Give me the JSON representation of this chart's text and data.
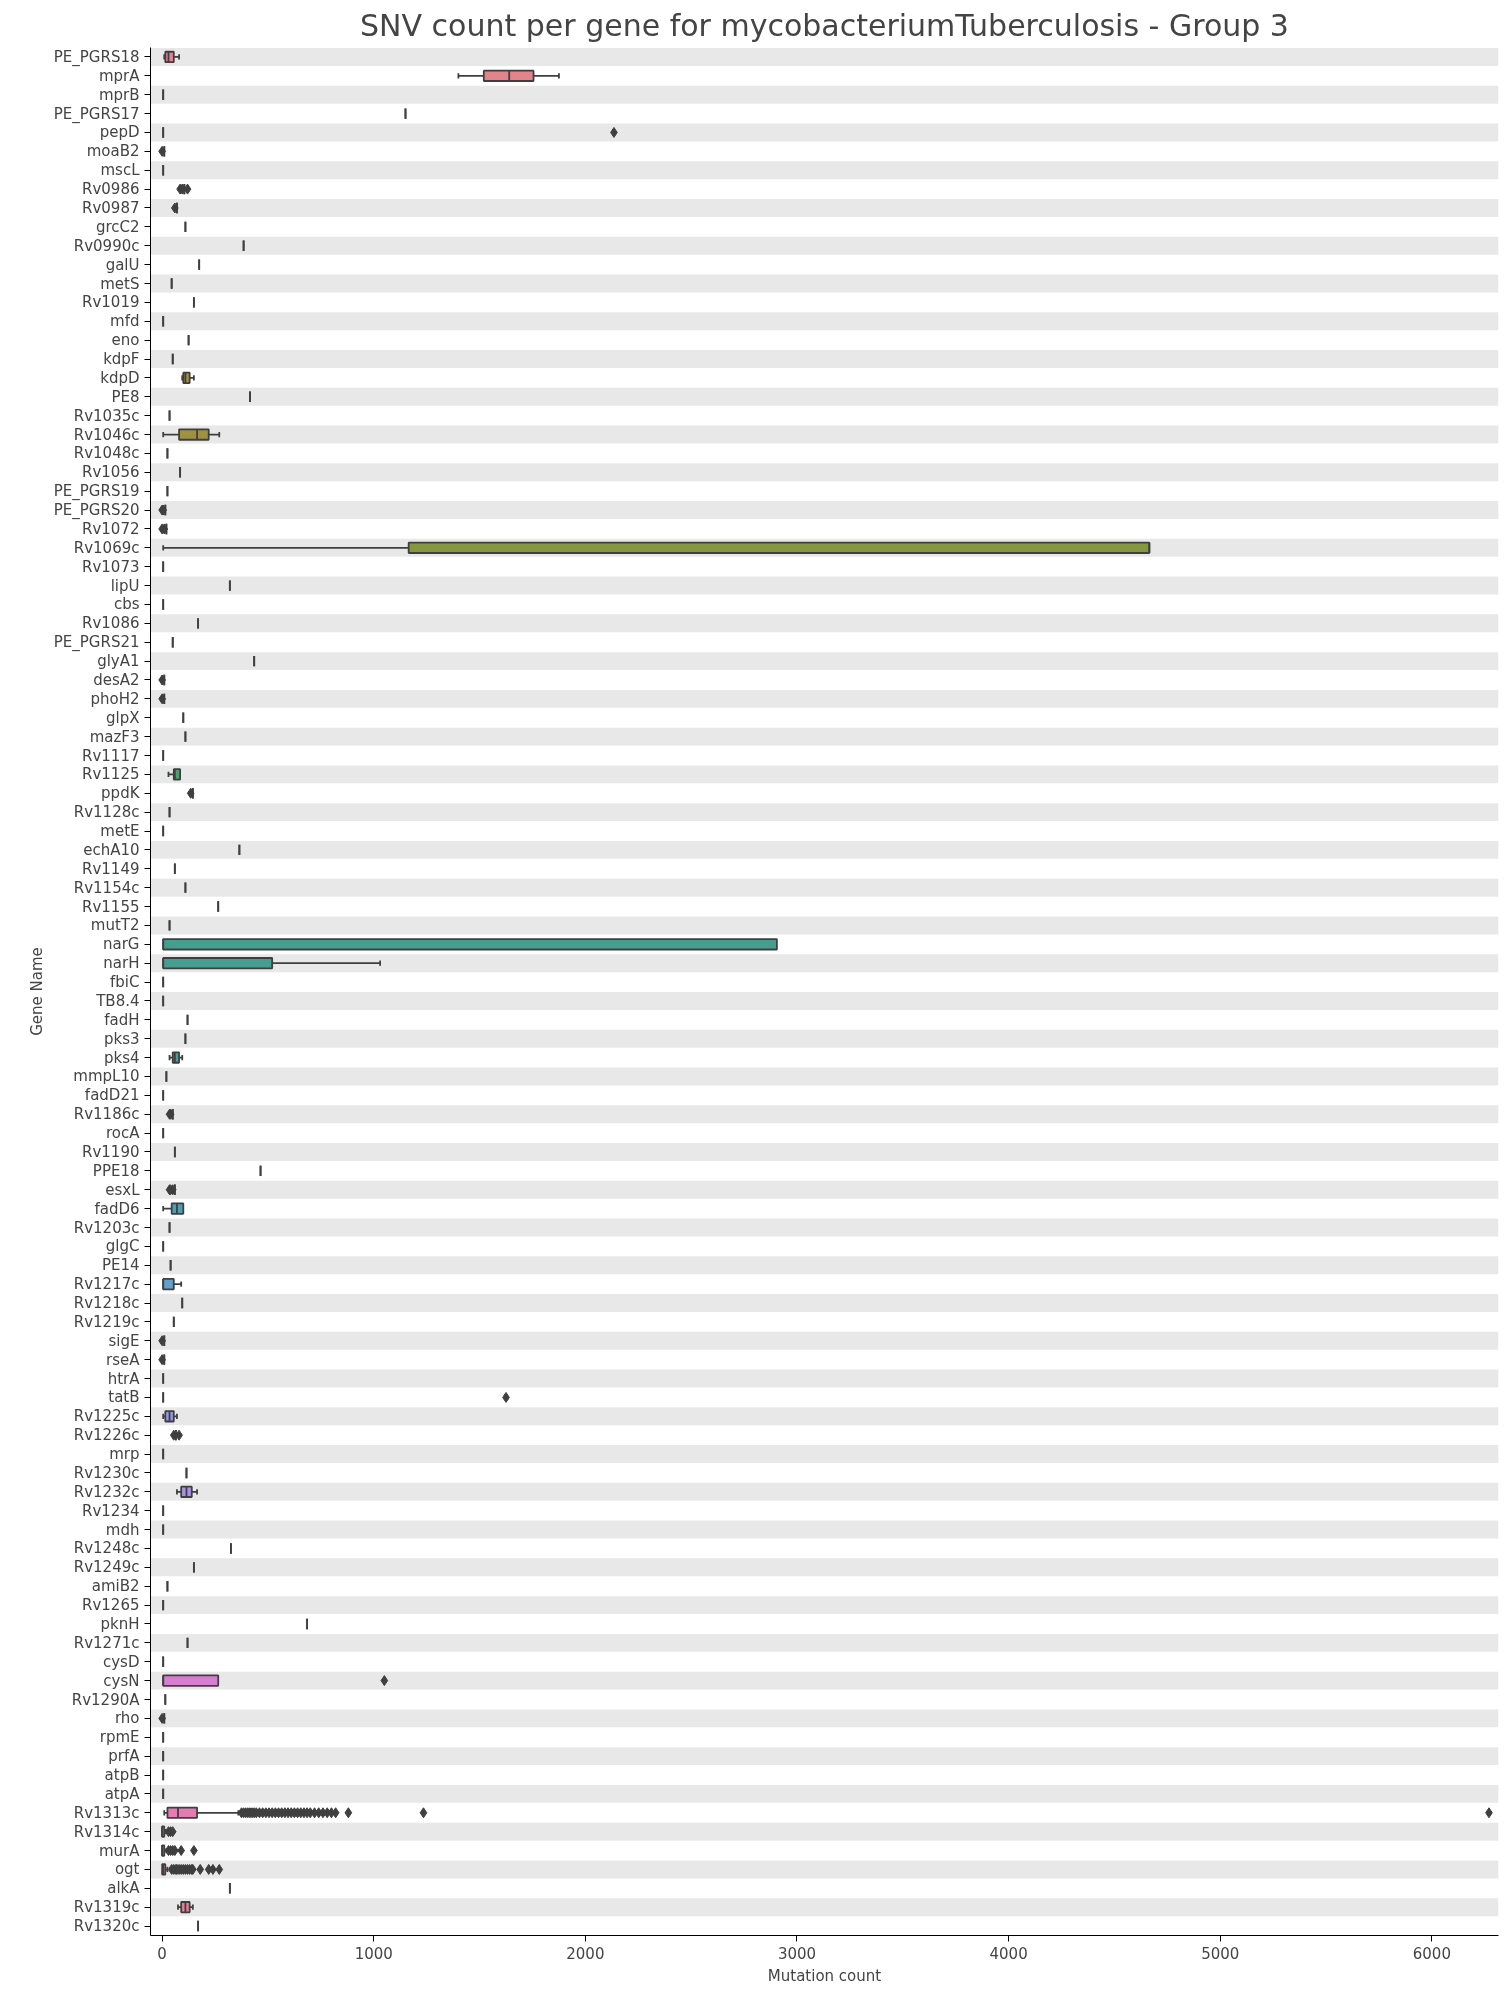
{
  "chart_data": {
    "type": "box",
    "orientation": "horizontal",
    "title": "SNV count per gene for mycobacteriumTuberculosis - Group 3",
    "xlabel": "Mutation count",
    "ylabel": "Gene Name",
    "categories": [
      "PE_PGRS18",
      "mprA",
      "mprB",
      "PE_PGRS17",
      "pepD",
      "moaB2",
      "mscL",
      "Rv0986",
      "Rv0987",
      "grcC2",
      "Rv0990c",
      "galU",
      "metS",
      "Rv1019",
      "mfd",
      "eno",
      "kdpF",
      "kdpD",
      "PE8",
      "Rv1035c",
      "Rv1046c",
      "Rv1048c",
      "Rv1056",
      "PE_PGRS19",
      "PE_PGRS20",
      "Rv1072",
      "Rv1069c",
      "Rv1073",
      "lipU",
      "cbs",
      "Rv1086",
      "PE_PGRS21",
      "glyA1",
      "desA2",
      "phoH2",
      "glpX",
      "mazF3",
      "Rv1117",
      "Rv1125",
      "ppdK",
      "Rv1128c",
      "metE",
      "echA10",
      "Rv1149",
      "Rv1154c",
      "Rv1155",
      "mutT2",
      "narG",
      "narH",
      "fbiC",
      "TB8.4",
      "fadH",
      "pks3",
      "pks4",
      "mmpL10",
      "fadD21",
      "Rv1186c",
      "rocA",
      "Rv1190",
      "PPE18",
      "esxL",
      "fadD6",
      "Rv1203c",
      "glgC",
      "PE14",
      "Rv1217c",
      "Rv1218c",
      "Rv1219c",
      "sigE",
      "rseA",
      "htrA",
      "tatB",
      "Rv1225c",
      "Rv1226c",
      "mrp",
      "Rv1230c",
      "Rv1232c",
      "Rv1234",
      "mdh",
      "Rv1248c",
      "Rv1249c",
      "amiB2",
      "Rv1265",
      "pknH",
      "Rv1271c",
      "cysD",
      "cysN",
      "Rv1290A",
      "rho",
      "rpmE",
      "prfA",
      "atpB",
      "atpA",
      "Rv1313c",
      "Rv1314c",
      "murA",
      "ogt",
      "alkA",
      "Rv1319c",
      "Rv1320c"
    ],
    "colors": [
      "#e68294",
      "#e3838c",
      "#3f3f3f",
      "#3f3f3f",
      "#3f3f3f",
      "#3f3f3f",
      "#3f3f3f",
      "#3f3f3f",
      "#3f3f3f",
      "#3f3f3f",
      "#3f3f3f",
      "#3f3f3f",
      "#3f3f3f",
      "#3f3f3f",
      "#3f3f3f",
      "#3f3f3f",
      "#3f3f3f",
      "#aa8f43",
      "#3f3f3f",
      "#3f3f3f",
      "#9e9241",
      "#3f3f3f",
      "#3f3f3f",
      "#3f3f3f",
      "#3f3f3f",
      "#3f3f3f",
      "#859840",
      "#3f3f3f",
      "#3f3f3f",
      "#3f3f3f",
      "#3f3f3f",
      "#3f3f3f",
      "#3f3f3f",
      "#3f3f3f",
      "#3f3f3f",
      "#3f3f3f",
      "#3f3f3f",
      "#3f3f3f",
      "#4d9f6d",
      "#3f3f3f",
      "#3f3f3f",
      "#3f3f3f",
      "#3f3f3f",
      "#3f3f3f",
      "#3f3f3f",
      "#3f3f3f",
      "#3f3f3f",
      "#449f8e",
      "#459e91",
      "#3f3f3f",
      "#3f3f3f",
      "#3f3f3f",
      "#3f3f3f",
      "#479e9f",
      "#3f3f3f",
      "#3f3f3f",
      "#3f3f3f",
      "#3f3f3f",
      "#3f3f3f",
      "#3f3f3f",
      "#3f3f3f",
      "#4f9eb8",
      "#3f3f3f",
      "#3f3f3f",
      "#3f3f3f",
      "#65a0cb",
      "#3f3f3f",
      "#3f3f3f",
      "#3f3f3f",
      "#3f3f3f",
      "#3f3f3f",
      "#3f3f3f",
      "#959ae4",
      "#3f3f3f",
      "#3f3f3f",
      "#3f3f3f",
      "#aa93e4",
      "#3f3f3f",
      "#3f3f3f",
      "#3f3f3f",
      "#3f3f3f",
      "#3f3f3f",
      "#3f3f3f",
      "#3f3f3f",
      "#3f3f3f",
      "#3f3f3f",
      "#d87ed1",
      "#3f3f3f",
      "#3f3f3f",
      "#3f3f3f",
      "#3f3f3f",
      "#3f3f3f",
      "#3f3f3f",
      "#e47bb1",
      "#e57dac",
      "#e57ea7",
      "#e57fa2",
      "#3f3f3f",
      "#e6809e",
      "#3f3f3f"
    ],
    "boxes": [
      {
        "low": 10,
        "q1": 15,
        "median": 30,
        "q3": 55,
        "high": 80
      },
      {
        "low": 1400,
        "q1": 1520,
        "median": 1640,
        "q3": 1755,
        "high": 1875
      },
      {
        "low": 5,
        "q1": 5,
        "median": 5,
        "q3": 5,
        "high": 5
      },
      {
        "low": 1150,
        "q1": 1150,
        "median": 1150,
        "q3": 1150,
        "high": 1150
      },
      {
        "low": 5,
        "q1": 5,
        "median": 5,
        "q3": 5,
        "high": 5,
        "outliers": [
          2135
        ]
      },
      {
        "low": 10,
        "q1": 10,
        "median": 10,
        "q3": 10,
        "high": 10,
        "outliers": [
          0
        ]
      },
      {
        "low": 5,
        "q1": 5,
        "median": 5,
        "q3": 5,
        "high": 5
      },
      {
        "low": 105,
        "q1": 105,
        "median": 105,
        "q3": 105,
        "high": 105,
        "outliers": [
          85,
          95,
          120
        ]
      },
      {
        "low": 70,
        "q1": 70,
        "median": 70,
        "q3": 70,
        "high": 70,
        "outliers": [
          60
        ]
      },
      {
        "low": 110,
        "q1": 110,
        "median": 110,
        "q3": 110,
        "high": 110
      },
      {
        "low": 385,
        "q1": 385,
        "median": 385,
        "q3": 385,
        "high": 385
      },
      {
        "low": 175,
        "q1": 175,
        "median": 175,
        "q3": 175,
        "high": 175
      },
      {
        "low": 45,
        "q1": 45,
        "median": 45,
        "q3": 45,
        "high": 45
      },
      {
        "low": 150,
        "q1": 150,
        "median": 150,
        "q3": 150,
        "high": 150
      },
      {
        "low": 5,
        "q1": 5,
        "median": 5,
        "q3": 5,
        "high": 5
      },
      {
        "low": 125,
        "q1": 125,
        "median": 125,
        "q3": 125,
        "high": 125
      },
      {
        "low": 50,
        "q1": 50,
        "median": 50,
        "q3": 50,
        "high": 50
      },
      {
        "low": 95,
        "q1": 100,
        "median": 110,
        "q3": 130,
        "high": 150
      },
      {
        "low": 415,
        "q1": 415,
        "median": 415,
        "q3": 415,
        "high": 415
      },
      {
        "low": 35,
        "q1": 35,
        "median": 35,
        "q3": 35,
        "high": 35
      },
      {
        "low": 5,
        "q1": 80,
        "median": 165,
        "q3": 220,
        "high": 270
      },
      {
        "low": 25,
        "q1": 25,
        "median": 25,
        "q3": 25,
        "high": 25
      },
      {
        "low": 85,
        "q1": 85,
        "median": 85,
        "q3": 85,
        "high": 85
      },
      {
        "low": 25,
        "q1": 25,
        "median": 25,
        "q3": 25,
        "high": 25
      },
      {
        "low": 15,
        "q1": 15,
        "median": 15,
        "q3": 15,
        "high": 15,
        "outliers": [
          0,
          5
        ]
      },
      {
        "low": 20,
        "q1": 20,
        "median": 20,
        "q3": 20,
        "high": 20,
        "outliers": [
          0,
          10
        ]
      },
      {
        "low": 5,
        "q1": 1165,
        "median": 4665,
        "q3": 4665,
        "high": 4665
      },
      {
        "low": 5,
        "q1": 5,
        "median": 5,
        "q3": 5,
        "high": 5
      },
      {
        "low": 320,
        "q1": 320,
        "median": 320,
        "q3": 320,
        "high": 320
      },
      {
        "low": 5,
        "q1": 5,
        "median": 5,
        "q3": 5,
        "high": 5
      },
      {
        "low": 170,
        "q1": 170,
        "median": 170,
        "q3": 170,
        "high": 170
      },
      {
        "low": 50,
        "q1": 50,
        "median": 50,
        "q3": 50,
        "high": 50
      },
      {
        "low": 435,
        "q1": 435,
        "median": 435,
        "q3": 435,
        "high": 435
      },
      {
        "low": 10,
        "q1": 10,
        "median": 10,
        "q3": 10,
        "high": 10,
        "outliers": [
          0
        ]
      },
      {
        "low": 10,
        "q1": 10,
        "median": 10,
        "q3": 10,
        "high": 10,
        "outliers": [
          0
        ]
      },
      {
        "low": 100,
        "q1": 100,
        "median": 100,
        "q3": 100,
        "high": 100
      },
      {
        "low": 110,
        "q1": 110,
        "median": 110,
        "q3": 110,
        "high": 110
      },
      {
        "low": 5,
        "q1": 5,
        "median": 5,
        "q3": 5,
        "high": 5
      },
      {
        "low": 30,
        "q1": 55,
        "median": 60,
        "q3": 85,
        "high": 85
      },
      {
        "low": 145,
        "q1": 145,
        "median": 145,
        "q3": 145,
        "high": 145,
        "outliers": [
          135
        ]
      },
      {
        "low": 35,
        "q1": 35,
        "median": 35,
        "q3": 35,
        "high": 35
      },
      {
        "low": 5,
        "q1": 5,
        "median": 5,
        "q3": 5,
        "high": 5
      },
      {
        "low": 365,
        "q1": 365,
        "median": 365,
        "q3": 365,
        "high": 365
      },
      {
        "low": 60,
        "q1": 60,
        "median": 60,
        "q3": 60,
        "high": 60
      },
      {
        "low": 110,
        "q1": 110,
        "median": 110,
        "q3": 110,
        "high": 110
      },
      {
        "low": 265,
        "q1": 265,
        "median": 265,
        "q3": 265,
        "high": 265
      },
      {
        "low": 35,
        "q1": 35,
        "median": 35,
        "q3": 35,
        "high": 35
      },
      {
        "low": 5,
        "q1": 5,
        "median": 5,
        "q3": 2905,
        "high": 2905
      },
      {
        "low": 5,
        "q1": 5,
        "median": 5,
        "q3": 520,
        "high": 1030
      },
      {
        "low": 5,
        "q1": 5,
        "median": 5,
        "q3": 5,
        "high": 5
      },
      {
        "low": 5,
        "q1": 5,
        "median": 5,
        "q3": 5,
        "high": 5
      },
      {
        "low": 120,
        "q1": 120,
        "median": 120,
        "q3": 120,
        "high": 120
      },
      {
        "low": 110,
        "q1": 110,
        "median": 110,
        "q3": 110,
        "high": 110
      },
      {
        "low": 35,
        "q1": 50,
        "median": 60,
        "q3": 80,
        "high": 95
      },
      {
        "low": 20,
        "q1": 20,
        "median": 20,
        "q3": 20,
        "high": 20
      },
      {
        "low": 5,
        "q1": 5,
        "median": 5,
        "q3": 5,
        "high": 5
      },
      {
        "low": 50,
        "q1": 50,
        "median": 50,
        "q3": 50,
        "high": 50,
        "outliers": [
          35,
          40
        ]
      },
      {
        "low": 5,
        "q1": 5,
        "median": 5,
        "q3": 5,
        "high": 5
      },
      {
        "low": 60,
        "q1": 60,
        "median": 60,
        "q3": 60,
        "high": 60
      },
      {
        "low": 465,
        "q1": 465,
        "median": 465,
        "q3": 465,
        "high": 465
      },
      {
        "low": 60,
        "q1": 60,
        "median": 60,
        "q3": 60,
        "high": 60,
        "outliers": [
          35,
          40,
          50
        ]
      },
      {
        "low": 5,
        "q1": 45,
        "median": 70,
        "q3": 100,
        "high": 100
      },
      {
        "low": 35,
        "q1": 35,
        "median": 35,
        "q3": 35,
        "high": 35
      },
      {
        "low": 5,
        "q1": 5,
        "median": 5,
        "q3": 5,
        "high": 5
      },
      {
        "low": 40,
        "q1": 40,
        "median": 40,
        "q3": 40,
        "high": 40
      },
      {
        "low": 5,
        "q1": 5,
        "median": 5,
        "q3": 55,
        "high": 90
      },
      {
        "low": 95,
        "q1": 95,
        "median": 95,
        "q3": 95,
        "high": 95
      },
      {
        "low": 55,
        "q1": 55,
        "median": 55,
        "q3": 55,
        "high": 55
      },
      {
        "low": 10,
        "q1": 10,
        "median": 10,
        "q3": 10,
        "high": 10,
        "outliers": [
          0
        ]
      },
      {
        "low": 10,
        "q1": 10,
        "median": 10,
        "q3": 10,
        "high": 10,
        "outliers": [
          0
        ]
      },
      {
        "low": 5,
        "q1": 5,
        "median": 5,
        "q3": 5,
        "high": 5
      },
      {
        "low": 5,
        "q1": 5,
        "median": 5,
        "q3": 5,
        "high": 5,
        "outliers": [
          1625
        ]
      },
      {
        "low": 5,
        "q1": 15,
        "median": 35,
        "q3": 55,
        "high": 70
      },
      {
        "low": 65,
        "q1": 65,
        "median": 65,
        "q3": 65,
        "high": 65,
        "outliers": [
          55,
          80
        ]
      },
      {
        "low": 5,
        "q1": 5,
        "median": 5,
        "q3": 5,
        "high": 5
      },
      {
        "low": 115,
        "q1": 115,
        "median": 115,
        "q3": 115,
        "high": 115
      },
      {
        "low": 70,
        "q1": 90,
        "median": 115,
        "q3": 140,
        "high": 165
      },
      {
        "low": 5,
        "q1": 5,
        "median": 5,
        "q3": 5,
        "high": 5
      },
      {
        "low": 5,
        "q1": 5,
        "median": 5,
        "q3": 5,
        "high": 5
      },
      {
        "low": 325,
        "q1": 325,
        "median": 325,
        "q3": 325,
        "high": 325
      },
      {
        "low": 150,
        "q1": 150,
        "median": 150,
        "q3": 150,
        "high": 150
      },
      {
        "low": 25,
        "q1": 25,
        "median": 25,
        "q3": 25,
        "high": 25
      },
      {
        "low": 5,
        "q1": 5,
        "median": 5,
        "q3": 5,
        "high": 5
      },
      {
        "low": 685,
        "q1": 685,
        "median": 685,
        "q3": 685,
        "high": 685
      },
      {
        "low": 120,
        "q1": 120,
        "median": 120,
        "q3": 120,
        "high": 120
      },
      {
        "low": 5,
        "q1": 5,
        "median": 5,
        "q3": 5,
        "high": 5
      },
      {
        "low": 5,
        "q1": 5,
        "median": 5,
        "q3": 265,
        "high": 265,
        "outliers": [
          1050
        ]
      },
      {
        "low": 15,
        "q1": 15,
        "median": 15,
        "q3": 15,
        "high": 15
      },
      {
        "low": 10,
        "q1": 10,
        "median": 10,
        "q3": 10,
        "high": 10,
        "outliers": [
          0
        ]
      },
      {
        "low": 5,
        "q1": 5,
        "median": 5,
        "q3": 5,
        "high": 5
      },
      {
        "low": 5,
        "q1": 5,
        "median": 5,
        "q3": 5,
        "high": 5
      },
      {
        "low": 5,
        "q1": 5,
        "median": 5,
        "q3": 5,
        "high": 5
      },
      {
        "low": 5,
        "q1": 5,
        "median": 5,
        "q3": 5,
        "high": 5
      },
      {
        "low": 10,
        "q1": 25,
        "median": 75,
        "q3": 165,
        "high": 360,
        "outliers": [
          375,
          385,
          395,
          405,
          415,
          425,
          435,
          445,
          460,
          475,
          490,
          505,
          520,
          535,
          550,
          565,
          580,
          595,
          610,
          625,
          640,
          655,
          670,
          685,
          700,
          720,
          740,
          760,
          780,
          800,
          820,
          880,
          1235,
          6270
        ]
      },
      {
        "low": 0,
        "q1": 0,
        "median": 0,
        "q3": 10,
        "high": 15,
        "outliers": [
          30,
          40,
          50
        ]
      },
      {
        "low": 0,
        "q1": 0,
        "median": 0,
        "q3": 10,
        "high": 20,
        "outliers": [
          30,
          40,
          50,
          60,
          90,
          150
        ]
      },
      {
        "low": 0,
        "q1": 0,
        "median": 5,
        "q3": 15,
        "high": 25,
        "outliers": [
          45,
          55,
          65,
          70,
          80,
          90,
          100,
          110,
          120,
          130,
          140,
          145,
          180,
          220,
          240,
          270
        ]
      },
      {
        "low": 320,
        "q1": 320,
        "median": 320,
        "q3": 320,
        "high": 320
      },
      {
        "low": 75,
        "q1": 90,
        "median": 110,
        "q3": 130,
        "high": 145
      },
      {
        "low": 170,
        "q1": 170,
        "median": 170,
        "q3": 170,
        "high": 170
      }
    ],
    "xlim": [
      -55,
      6315
    ],
    "xticks": [
      0,
      1000,
      2000,
      3000,
      4000,
      5000,
      6000
    ],
    "marker": "diamond",
    "bands": [
      {
        "axis": "y",
        "from": "PE_PGRS18",
        "to": "PE_PGRS18",
        "color": "#e8e8e8"
      },
      {
        "axis": "y",
        "from": "mprB",
        "to": "mprB",
        "color": "#e8e8e8"
      },
      {
        "axis": "y",
        "from": "pepD",
        "to": "pepD",
        "color": "#e8e8e8"
      },
      {
        "axis": "y",
        "from": "mscL",
        "to": "mscL",
        "color": "#e8e8e8"
      },
      {
        "axis": "y",
        "from": "Rv0987",
        "to": "Rv0987",
        "color": "#e8e8e8"
      },
      {
        "axis": "y",
        "from": "Rv0990c",
        "to": "Rv0990c",
        "color": "#e8e8e8"
      },
      {
        "axis": "y",
        "from": "metS",
        "to": "metS",
        "color": "#e8e8e8"
      },
      {
        "axis": "y",
        "from": "mfd",
        "to": "mfd",
        "color": "#e8e8e8"
      },
      {
        "axis": "y",
        "from": "kdpF",
        "to": "kdpF",
        "color": "#e8e8e8"
      },
      {
        "axis": "y",
        "from": "PE8",
        "to": "PE8",
        "color": "#e8e8e8"
      },
      {
        "axis": "y",
        "from": "Rv1046c",
        "to": "Rv1046c",
        "color": "#e8e8e8"
      },
      {
        "axis": "y",
        "from": "Rv1056",
        "to": "Rv1056",
        "color": "#e8e8e8"
      },
      {
        "axis": "y",
        "from": "PE_PGRS20",
        "to": "PE_PGRS20",
        "color": "#e8e8e8"
      },
      {
        "axis": "y",
        "from": "Rv1069c",
        "to": "Rv1069c",
        "color": "#e8e8e8"
      },
      {
        "axis": "y",
        "from": "lipU",
        "to": "lipU",
        "color": "#e8e8e8"
      },
      {
        "axis": "y",
        "from": "Rv1086",
        "to": "Rv1086",
        "color": "#e8e8e8"
      },
      {
        "axis": "y",
        "from": "glyA1",
        "to": "glyA1",
        "color": "#e8e8e8"
      },
      {
        "axis": "y",
        "from": "phoH2",
        "to": "phoH2",
        "color": "#e8e8e8"
      },
      {
        "axis": "y",
        "from": "mazF3",
        "to": "mazF3",
        "color": "#e8e8e8"
      },
      {
        "axis": "y",
        "from": "Rv1125",
        "to": "Rv1125",
        "color": "#e8e8e8"
      },
      {
        "axis": "y",
        "from": "Rv1128c",
        "to": "Rv1128c",
        "color": "#e8e8e8"
      },
      {
        "axis": "y",
        "from": "echA10",
        "to": "echA10",
        "color": "#e8e8e8"
      },
      {
        "axis": "y",
        "from": "Rv1154c",
        "to": "Rv1154c",
        "color": "#e8e8e8"
      },
      {
        "axis": "y",
        "from": "mutT2",
        "to": "mutT2",
        "color": "#e8e8e8"
      },
      {
        "axis": "y",
        "from": "narH",
        "to": "narH",
        "color": "#e8e8e8"
      },
      {
        "axis": "y",
        "from": "TB8.4",
        "to": "TB8.4",
        "color": "#e8e8e8"
      },
      {
        "axis": "y",
        "from": "pks3",
        "to": "pks3",
        "color": "#e8e8e8"
      },
      {
        "axis": "y",
        "from": "mmpL10",
        "to": "mmpL10",
        "color": "#e8e8e8"
      },
      {
        "axis": "y",
        "from": "Rv1186c",
        "to": "Rv1186c",
        "color": "#e8e8e8"
      },
      {
        "axis": "y",
        "from": "Rv1190",
        "to": "Rv1190",
        "color": "#e8e8e8"
      },
      {
        "axis": "y",
        "from": "esxL",
        "to": "esxL",
        "color": "#e8e8e8"
      },
      {
        "axis": "y",
        "from": "Rv1203c",
        "to": "Rv1203c",
        "color": "#e8e8e8"
      },
      {
        "axis": "y",
        "from": "PE14",
        "to": "PE14",
        "color": "#e8e8e8"
      },
      {
        "axis": "y",
        "from": "Rv1218c",
        "to": "Rv1218c",
        "color": "#e8e8e8"
      },
      {
        "axis": "y",
        "from": "sigE",
        "to": "sigE",
        "color": "#e8e8e8"
      },
      {
        "axis": "y",
        "from": "htrA",
        "to": "htrA",
        "color": "#e8e8e8"
      },
      {
        "axis": "y",
        "from": "Rv1225c",
        "to": "Rv1225c",
        "color": "#e8e8e8"
      },
      {
        "axis": "y",
        "from": "mrp",
        "to": "mrp",
        "color": "#e8e8e8"
      },
      {
        "axis": "y",
        "from": "Rv1232c",
        "to": "Rv1232c",
        "color": "#e8e8e8"
      },
      {
        "axis": "y",
        "from": "mdh",
        "to": "mdh",
        "color": "#e8e8e8"
      },
      {
        "axis": "y",
        "from": "Rv1249c",
        "to": "Rv1249c",
        "color": "#e8e8e8"
      },
      {
        "axis": "y",
        "from": "Rv1265",
        "to": "Rv1265",
        "color": "#e8e8e8"
      },
      {
        "axis": "y",
        "from": "Rv1271c",
        "to": "Rv1271c",
        "color": "#e8e8e8"
      },
      {
        "axis": "y",
        "from": "cysN",
        "to": "cysN",
        "color": "#e8e8e8"
      },
      {
        "axis": "y",
        "from": "rho",
        "to": "rho",
        "color": "#e8e8e8"
      },
      {
        "axis": "y",
        "from": "prfA",
        "to": "prfA",
        "color": "#e8e8e8"
      },
      {
        "axis": "y",
        "from": "atpA",
        "to": "atpA",
        "color": "#e8e8e8"
      },
      {
        "axis": "y",
        "from": "Rv1314c",
        "to": "Rv1314c",
        "color": "#e8e8e8"
      },
      {
        "axis": "y",
        "from": "ogt",
        "to": "ogt",
        "color": "#e8e8e8"
      },
      {
        "axis": "y",
        "from": "Rv1319c",
        "to": "Rv1319c",
        "color": "#e8e8e8"
      }
    ]
  }
}
